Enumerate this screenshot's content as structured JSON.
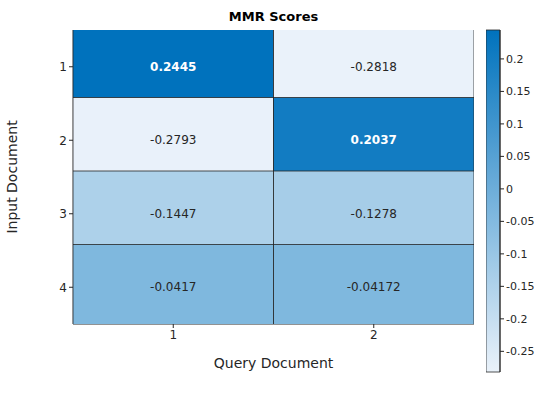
{
  "chart_data": {
    "type": "heatmap",
    "title": "MMR Scores",
    "x_label": "Query Document",
    "y_label": "Input Document",
    "x_categories": [
      "1",
      "2"
    ],
    "y_categories": [
      "1",
      "2",
      "3",
      "4"
    ],
    "values": [
      [
        0.2445,
        -0.2818
      ],
      [
        -0.2793,
        0.2037
      ],
      [
        -0.1447,
        -0.1278
      ],
      [
        -0.0417,
        -0.04172
      ]
    ],
    "data_labels": true,
    "colorbar_range": [
      -0.2818,
      0.2445
    ],
    "colorbar_ticks": [
      -0.25,
      -0.2,
      -0.15,
      -0.1,
      -0.05,
      0,
      0.05,
      0.1,
      0.15,
      0.2
    ]
  }
}
